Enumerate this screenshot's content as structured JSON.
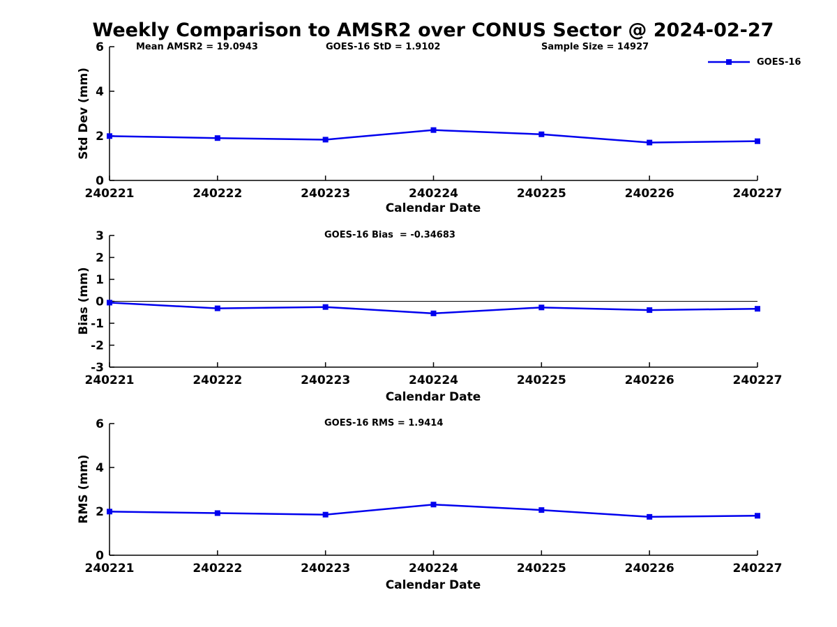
{
  "title": "Weekly Comparison to AMSR2 over CONUS Sector @ 2024-02-27",
  "legend": {
    "label": "GOES-16"
  },
  "series_color": "#0000EE",
  "chart_data": [
    {
      "type": "line",
      "panel": "std-dev",
      "categories": [
        "240221",
        "240222",
        "240223",
        "240224",
        "240225",
        "240226",
        "240227"
      ],
      "series": [
        {
          "name": "GOES-16",
          "values": [
            1.99,
            1.9,
            1.83,
            2.26,
            2.07,
            1.7,
            1.76
          ]
        }
      ],
      "ylabel": "Std Dev (mm)",
      "xlabel": "Calendar Date",
      "ylim": [
        0,
        6
      ],
      "yticks": [
        0,
        2,
        4,
        6
      ],
      "grid": false,
      "zero_line": false,
      "annotations": [
        {
          "text": "Mean AMSR2 = 19.0943"
        },
        {
          "text": "GOES-16 StD = 1.9102"
        },
        {
          "text": "Sample Size = 14927"
        }
      ]
    },
    {
      "type": "line",
      "panel": "bias",
      "categories": [
        "240221",
        "240222",
        "240223",
        "240224",
        "240225",
        "240226",
        "240227"
      ],
      "series": [
        {
          "name": "GOES-16",
          "values": [
            -0.06,
            -0.32,
            -0.26,
            -0.55,
            -0.28,
            -0.4,
            -0.34
          ]
        }
      ],
      "ylabel": "Bias (mm)",
      "xlabel": "Calendar Date",
      "ylim": [
        -3,
        3
      ],
      "yticks": [
        -3,
        -2,
        -1,
        0,
        1,
        2,
        3
      ],
      "grid": false,
      "zero_line": true,
      "annotations": [
        {
          "text": "GOES-16 Bias  = -0.34683"
        }
      ]
    },
    {
      "type": "line",
      "panel": "rms",
      "categories": [
        "240221",
        "240222",
        "240223",
        "240224",
        "240225",
        "240226",
        "240227"
      ],
      "series": [
        {
          "name": "GOES-16",
          "values": [
            1.99,
            1.92,
            1.85,
            2.31,
            2.06,
            1.75,
            1.8
          ]
        }
      ],
      "ylabel": "RMS (mm)",
      "xlabel": "Calendar Date",
      "ylim": [
        0,
        6
      ],
      "yticks": [
        0,
        2,
        4,
        6
      ],
      "grid": false,
      "zero_line": false,
      "annotations": [
        {
          "text": "GOES-16 RMS = 1.9414"
        }
      ]
    }
  ]
}
